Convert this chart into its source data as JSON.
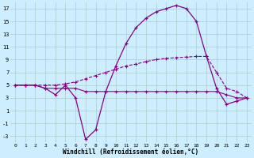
{
  "xlabel": "Windchill (Refroidissement éolien,°C)",
  "bg_color": "#cceeff",
  "grid_color": "#aacccc",
  "line_color": "#880088",
  "xlim": [
    -0.5,
    23.5
  ],
  "ylim": [
    -4,
    18
  ],
  "xticks": [
    0,
    1,
    2,
    3,
    4,
    5,
    6,
    7,
    8,
    9,
    10,
    11,
    12,
    13,
    14,
    15,
    16,
    17,
    18,
    19,
    20,
    21,
    22,
    23
  ],
  "yticks": [
    -3,
    -1,
    1,
    3,
    5,
    7,
    9,
    11,
    13,
    15,
    17
  ],
  "line1_x": [
    0,
    1,
    2,
    3,
    4,
    5,
    6,
    7,
    8,
    9,
    10,
    11,
    12,
    13,
    14,
    15,
    16,
    17,
    18,
    19,
    20,
    21,
    22,
    23
  ],
  "line1_y": [
    5,
    5,
    5,
    4.5,
    4.5,
    4.5,
    4.5,
    4,
    4,
    4,
    4,
    4,
    4,
    4,
    4,
    4,
    4,
    4,
    4,
    4,
    4,
    3.5,
    3,
    3
  ],
  "line2_x": [
    0,
    1,
    2,
    3,
    4,
    5,
    6,
    7,
    8,
    9,
    10,
    11,
    12,
    13,
    14,
    15,
    16,
    17,
    18,
    19,
    20,
    21,
    22,
    23
  ],
  "line2_y": [
    5,
    5,
    5,
    5,
    5,
    5.2,
    5.5,
    6,
    6.5,
    7,
    7.5,
    8,
    8.3,
    8.7,
    9,
    9.2,
    9.3,
    9.4,
    9.5,
    9.5,
    7,
    4.5,
    4,
    3
  ],
  "line3_x": [
    0,
    1,
    2,
    3,
    4,
    5,
    6,
    7,
    8,
    9,
    10,
    11,
    12,
    13,
    14,
    15,
    16,
    17,
    18,
    19,
    20,
    21,
    22,
    23
  ],
  "line3_y": [
    5,
    5,
    5,
    4.5,
    3.5,
    5,
    3,
    -3.5,
    -2,
    4,
    8,
    11.5,
    14,
    15.5,
    16.5,
    17,
    17.5,
    17,
    15,
    9.5,
    4.5,
    2,
    2.5,
    3
  ]
}
